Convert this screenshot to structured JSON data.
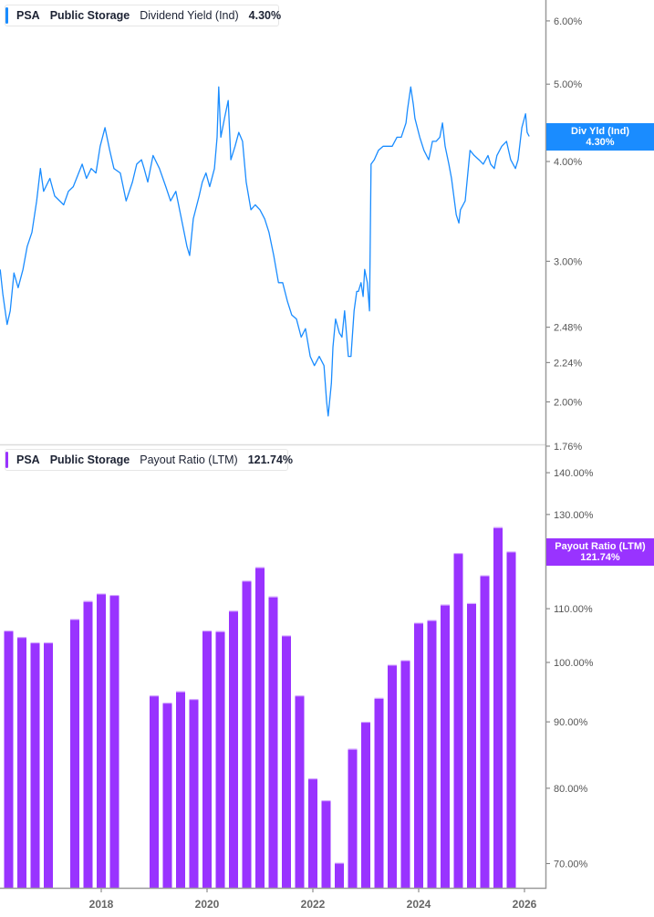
{
  "colors": {
    "yield": "#1a8cff",
    "payout": "#9933ff",
    "axis": "#9a9a9a",
    "text": "#555555"
  },
  "top_legend": {
    "ticker": "PSA",
    "company": "Public Storage",
    "metric": "Dividend Yield (Ind)",
    "value": "4.30%"
  },
  "bottom_legend": {
    "ticker": "PSA",
    "company": "Public Storage",
    "metric": "Payout Ratio (LTM)",
    "value": "121.74%"
  },
  "top_tag": {
    "label": "Div Yld (Ind)",
    "value": "4.30%"
  },
  "bottom_tag": {
    "label": "Payout Ratio (LTM)",
    "value": "121.74%"
  },
  "chart_data": [
    {
      "type": "line",
      "series_name": "Dividend Yield (Ind)",
      "yscale": "log",
      "ylim": [
        1.76,
        6.3
      ],
      "xlim": [
        2016.09,
        2026.5
      ],
      "grid": false,
      "yticks": [
        6.0,
        5.0,
        4.0,
        3.0,
        2.48,
        2.24,
        2.0,
        1.76
      ],
      "ytick_labels": [
        "6.00%",
        "5.00%",
        "4.00%",
        "3.00%",
        "2.48%",
        "2.24%",
        "2.00%",
        "1.76%"
      ],
      "points": [
        [
          2016.09,
          2.93
        ],
        [
          2016.14,
          2.73
        ],
        [
          2016.22,
          2.5
        ],
        [
          2016.28,
          2.6
        ],
        [
          2016.35,
          2.9
        ],
        [
          2016.43,
          2.78
        ],
        [
          2016.52,
          2.93
        ],
        [
          2016.6,
          3.13
        ],
        [
          2016.69,
          3.26
        ],
        [
          2016.78,
          3.57
        ],
        [
          2016.85,
          3.92
        ],
        [
          2016.91,
          3.67
        ],
        [
          2017.03,
          3.81
        ],
        [
          2017.12,
          3.62
        ],
        [
          2017.29,
          3.53
        ],
        [
          2017.38,
          3.67
        ],
        [
          2017.47,
          3.72
        ],
        [
          2017.64,
          3.97
        ],
        [
          2017.72,
          3.81
        ],
        [
          2017.81,
          3.92
        ],
        [
          2017.9,
          3.87
        ],
        [
          2017.98,
          4.18
        ],
        [
          2018.07,
          4.41
        ],
        [
          2018.16,
          4.13
        ],
        [
          2018.24,
          3.92
        ],
        [
          2018.36,
          3.87
        ],
        [
          2018.47,
          3.57
        ],
        [
          2018.59,
          3.77
        ],
        [
          2018.67,
          3.97
        ],
        [
          2018.76,
          4.02
        ],
        [
          2018.81,
          3.92
        ],
        [
          2018.88,
          3.77
        ],
        [
          2018.98,
          4.07
        ],
        [
          2019.1,
          3.92
        ],
        [
          2019.22,
          3.72
        ],
        [
          2019.31,
          3.57
        ],
        [
          2019.41,
          3.67
        ],
        [
          2019.5,
          3.43
        ],
        [
          2019.62,
          3.13
        ],
        [
          2019.67,
          3.05
        ],
        [
          2019.74,
          3.39
        ],
        [
          2019.85,
          3.62
        ],
        [
          2019.91,
          3.77
        ],
        [
          2019.98,
          3.87
        ],
        [
          2020.05,
          3.72
        ],
        [
          2020.14,
          3.92
        ],
        [
          2020.19,
          4.29
        ],
        [
          2020.22,
          4.96
        ],
        [
          2020.26,
          4.29
        ],
        [
          2020.33,
          4.53
        ],
        [
          2020.4,
          4.77
        ],
        [
          2020.45,
          4.02
        ],
        [
          2020.53,
          4.18
        ],
        [
          2020.6,
          4.35
        ],
        [
          2020.67,
          4.24
        ],
        [
          2020.74,
          3.77
        ],
        [
          2020.83,
          3.48
        ],
        [
          2020.91,
          3.53
        ],
        [
          2021.0,
          3.48
        ],
        [
          2021.09,
          3.39
        ],
        [
          2021.17,
          3.26
        ],
        [
          2021.26,
          3.05
        ],
        [
          2021.35,
          2.82
        ],
        [
          2021.43,
          2.82
        ],
        [
          2021.52,
          2.67
        ],
        [
          2021.6,
          2.57
        ],
        [
          2021.69,
          2.54
        ],
        [
          2021.78,
          2.41
        ],
        [
          2021.86,
          2.47
        ],
        [
          2021.95,
          2.28
        ],
        [
          2022.03,
          2.22
        ],
        [
          2022.12,
          2.28
        ],
        [
          2022.21,
          2.22
        ],
        [
          2022.26,
          2.0
        ],
        [
          2022.29,
          1.92
        ],
        [
          2022.35,
          2.11
        ],
        [
          2022.38,
          2.34
        ],
        [
          2022.43,
          2.54
        ],
        [
          2022.5,
          2.44
        ],
        [
          2022.55,
          2.41
        ],
        [
          2022.6,
          2.6
        ],
        [
          2022.67,
          2.28
        ],
        [
          2022.72,
          2.28
        ],
        [
          2022.78,
          2.6
        ],
        [
          2022.83,
          2.75
        ],
        [
          2022.86,
          2.75
        ],
        [
          2022.91,
          2.82
        ],
        [
          2022.95,
          2.71
        ],
        [
          2022.98,
          2.93
        ],
        [
          2023.03,
          2.82
        ],
        [
          2023.07,
          2.6
        ],
        [
          2023.1,
          3.97
        ],
        [
          2023.16,
          4.02
        ],
        [
          2023.24,
          4.13
        ],
        [
          2023.33,
          4.18
        ],
        [
          2023.41,
          4.18
        ],
        [
          2023.5,
          4.18
        ],
        [
          2023.59,
          4.29
        ],
        [
          2023.67,
          4.29
        ],
        [
          2023.76,
          4.47
        ],
        [
          2023.79,
          4.65
        ],
        [
          2023.85,
          4.96
        ],
        [
          2023.9,
          4.71
        ],
        [
          2023.93,
          4.53
        ],
        [
          2024.02,
          4.29
        ],
        [
          2024.1,
          4.13
        ],
        [
          2024.19,
          4.02
        ],
        [
          2024.26,
          4.24
        ],
        [
          2024.33,
          4.24
        ],
        [
          2024.4,
          4.29
        ],
        [
          2024.45,
          4.47
        ],
        [
          2024.5,
          4.18
        ],
        [
          2024.57,
          3.97
        ],
        [
          2024.62,
          3.81
        ],
        [
          2024.71,
          3.43
        ],
        [
          2024.76,
          3.35
        ],
        [
          2024.79,
          3.48
        ],
        [
          2024.88,
          3.57
        ],
        [
          2024.97,
          4.13
        ],
        [
          2025.05,
          4.07
        ],
        [
          2025.14,
          4.02
        ],
        [
          2025.22,
          3.97
        ],
        [
          2025.31,
          4.07
        ],
        [
          2025.36,
          3.97
        ],
        [
          2025.43,
          3.92
        ],
        [
          2025.48,
          4.07
        ],
        [
          2025.57,
          4.18
        ],
        [
          2025.66,
          4.24
        ],
        [
          2025.74,
          4.02
        ],
        [
          2025.83,
          3.92
        ],
        [
          2025.88,
          4.02
        ],
        [
          2025.95,
          4.41
        ],
        [
          2026.02,
          4.59
        ],
        [
          2026.05,
          4.35
        ],
        [
          2026.09,
          4.3
        ]
      ]
    },
    {
      "type": "bar",
      "series_name": "Payout Ratio (LTM)",
      "yscale": "log",
      "ylim": [
        66,
        145
      ],
      "grid": false,
      "yticks": [
        140,
        130,
        120,
        110,
        100,
        90,
        80,
        70
      ],
      "ytick_labels": [
        "140.00%",
        "130.00%",
        "120.00%",
        "110.00%",
        "100.00%",
        "90.00%",
        "80.00%",
        "70.00%"
      ],
      "xticks": [
        2018,
        2020,
        2022,
        2024,
        2026
      ],
      "xtick_labels": [
        "2018",
        "2020",
        "2022",
        "2024",
        "2026"
      ],
      "categories": [
        "2016-03",
        "2016-06",
        "2016-09",
        "2016-12",
        "2017-06",
        "2017-09",
        "2017-12",
        "2018-03",
        "2018-12",
        "2019-03",
        "2019-06",
        "2019-09",
        "2019-12",
        "2020-03",
        "2020-06",
        "2020-09",
        "2020-12",
        "2021-03",
        "2021-06",
        "2021-09",
        "2021-12",
        "2022-03",
        "2022-06",
        "2022-09",
        "2022-12",
        "2023-03",
        "2023-06",
        "2023-09",
        "2023-12",
        "2024-03",
        "2024-06",
        "2024-09",
        "2024-12",
        "2025-03",
        "2025-06",
        "2025-09"
      ],
      "values": [
        105.8,
        104.6,
        103.6,
        103.6,
        108.0,
        111.5,
        113.0,
        112.7,
        94.3,
        93.1,
        95.0,
        93.7,
        105.8,
        105.7,
        109.6,
        115.6,
        118.4,
        112.4,
        104.9,
        94.3,
        81.4,
        78.3,
        70.1,
        85.8,
        90.0,
        93.9,
        99.6,
        100.4,
        107.3,
        107.8,
        110.8,
        121.4,
        111.1,
        116.7,
        127.1,
        121.74
      ]
    }
  ]
}
